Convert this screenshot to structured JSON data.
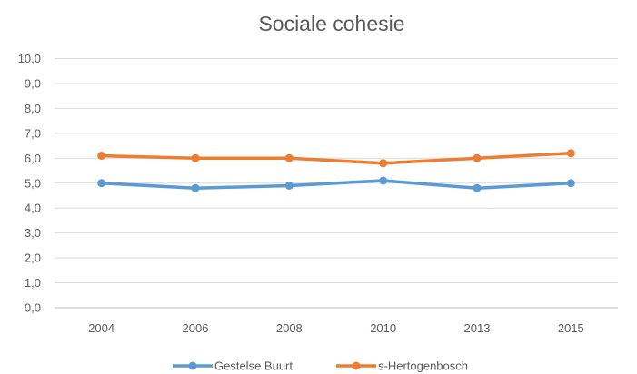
{
  "chart_data": {
    "type": "line",
    "title": "Sociale cohesie",
    "xlabel": "",
    "ylabel": "",
    "categories": [
      "2004",
      "2006",
      "2008",
      "2010",
      "2013",
      "2015"
    ],
    "ylim": [
      0,
      10
    ],
    "yticks": [
      "0,0",
      "1,0",
      "2,0",
      "3,0",
      "4,0",
      "5,0",
      "6,0",
      "7,0",
      "8,0",
      "9,0",
      "10,0"
    ],
    "grid": true,
    "legend_position": "bottom",
    "series": [
      {
        "name": "Gestelse Buurt",
        "color": "#5B9BD5",
        "values": [
          5.0,
          4.8,
          4.9,
          5.1,
          4.8,
          5.0
        ]
      },
      {
        "name": "s-Hertogenbosch",
        "color": "#ED7D31",
        "values": [
          6.1,
          6.0,
          6.0,
          5.8,
          6.0,
          6.2
        ]
      }
    ]
  }
}
